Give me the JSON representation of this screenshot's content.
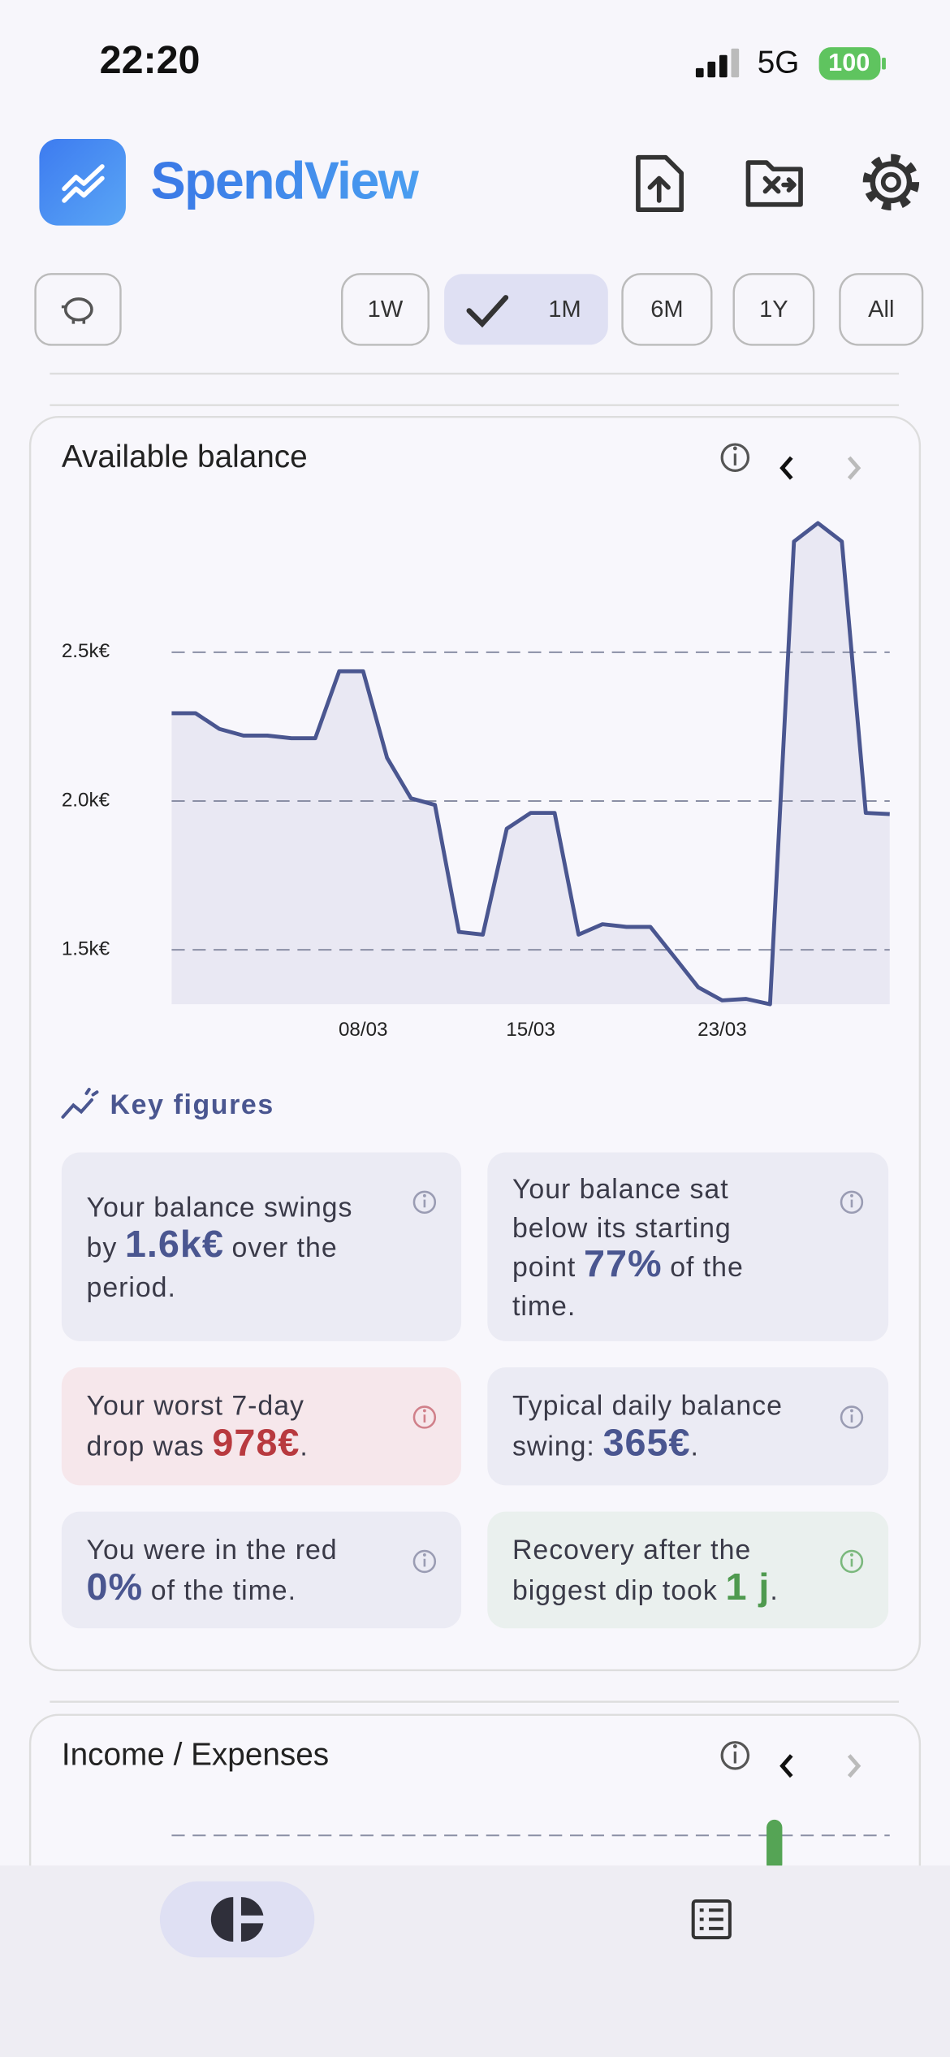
{
  "status_bar": {
    "time": "22:20",
    "network": "5G",
    "battery": "100"
  },
  "header": {
    "app_name": "SpendView"
  },
  "period_filter": {
    "options": [
      "1W",
      "1M",
      "6M",
      "1Y",
      "All"
    ],
    "selected": 1
  },
  "chart_data": {
    "type": "area",
    "title": "Available balance",
    "categories": [
      null,
      null,
      null,
      null,
      null,
      null,
      null,
      null,
      "08/03",
      null,
      null,
      null,
      null,
      null,
      null,
      "15/03",
      null,
      null,
      null,
      null,
      null,
      null,
      null,
      "23/03",
      null,
      null,
      null,
      null,
      null,
      null,
      null
    ],
    "values": [
      2295,
      2295,
      2242,
      2220,
      2220,
      2211,
      2211,
      2436,
      2436,
      2145,
      2009,
      1987,
      1560,
      1551,
      1907,
      1960,
      1960,
      1551,
      1586,
      1577,
      1577,
      1476,
      1374,
      1330,
      1335,
      1317,
      2872,
      2934,
      2872,
      1960,
      1956
    ],
    "color": "#4a5690",
    "fill": "#e9e8f3",
    "ylim": [
      1317,
      2934
    ],
    "yticks": [
      {
        "value": 1500,
        "label": "1.5k€"
      },
      {
        "value": 2000,
        "label": "2.0k€"
      },
      {
        "value": 2500,
        "label": "2.5k€"
      }
    ],
    "grid": true
  },
  "key_figures": {
    "title": "Key figures",
    "cards": [
      {
        "lines": [
          [
            "Your balance swings"
          ],
          [
            "by",
            {
              "em": "1.6k€"
            },
            "over the"
          ],
          [
            "period."
          ]
        ],
        "color": "#4a5690",
        "background": "#ebebf4",
        "icon_color": "#9a9cb3"
      },
      {
        "lines": [
          [
            "Your balance sat"
          ],
          [
            "below its starting"
          ],
          [
            "point",
            {
              "em": "77%"
            },
            "of the"
          ],
          [
            "time."
          ]
        ],
        "color": "#4a5690",
        "background": "#ebebf4",
        "icon_color": "#9a9cb3"
      },
      {
        "lines": [
          [
            "Your worst 7-day"
          ],
          [
            "drop was",
            {
              "em": "978€"
            },
            "."
          ]
        ],
        "color": "#b83a3f",
        "background": "#f6e7eb",
        "icon_color": "#d0808a"
      },
      {
        "lines": [
          [
            "Typical daily balance"
          ],
          [
            "swing:",
            {
              "em": "365€"
            },
            "."
          ]
        ],
        "color": "#4a5690",
        "background": "#ebebf4",
        "icon_color": "#9a9cb3"
      },
      {
        "lines": [
          [
            "You were in the red"
          ],
          [
            {
              "em": "0%"
            },
            "of the time."
          ]
        ],
        "color": "#4a5690",
        "background": "#ebebf4",
        "icon_color": "#9a9cb3"
      },
      {
        "lines": [
          [
            "Recovery after the"
          ],
          [
            "biggest dip took",
            {
              "em": "1 j"
            },
            "."
          ]
        ],
        "color": "#4f9a4f",
        "background": "#eaf0ee",
        "icon_color": "#7bb87d"
      }
    ]
  },
  "income_expenses": {
    "title": "Income / Expenses"
  }
}
